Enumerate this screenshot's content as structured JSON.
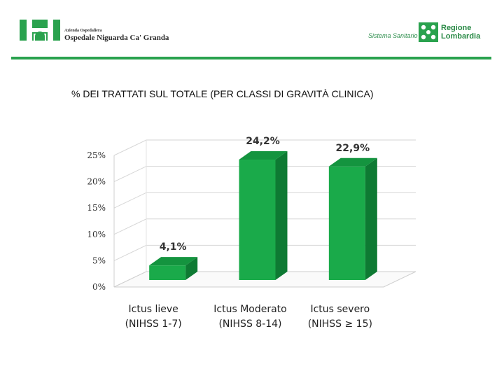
{
  "header": {
    "hospital_sub": "Azienda Ospedaliera",
    "hospital_name": "Ospedale Niguarda Ca' Granda",
    "sistema": "Sistema Sanitario",
    "regione_line1": "Regione",
    "regione_line2": "Lombardia",
    "brand_color": "#2aa24e"
  },
  "slide": {
    "title": "% DEI TRATTATI SUL TOTALE  (PER CLASSI DI GRAVITÀ CLINICA)"
  },
  "chart_data": {
    "type": "bar",
    "categories": [
      [
        "Ictus lieve",
        "(NIHSS 1-7)"
      ],
      [
        "Ictus Moderato",
        "(NIHSS 8-14)"
      ],
      [
        "Ictus severo",
        "(NIHSS ≥ 15)"
      ]
    ],
    "values": [
      4.1,
      24.2,
      22.9
    ],
    "data_labels": [
      "4,1%",
      "24,2%",
      "22,9%"
    ],
    "yticks": [
      0,
      5,
      10,
      15,
      20,
      25
    ],
    "ytick_labels": [
      "0%",
      "5%",
      "10%",
      "15%",
      "20%",
      "25%"
    ],
    "ylim": [
      0,
      25
    ],
    "grid": true,
    "bar_color": "#1aaa4a",
    "bar_side_color": "#0e7a33",
    "bar_top_color": "#14943f",
    "style": "3d"
  }
}
